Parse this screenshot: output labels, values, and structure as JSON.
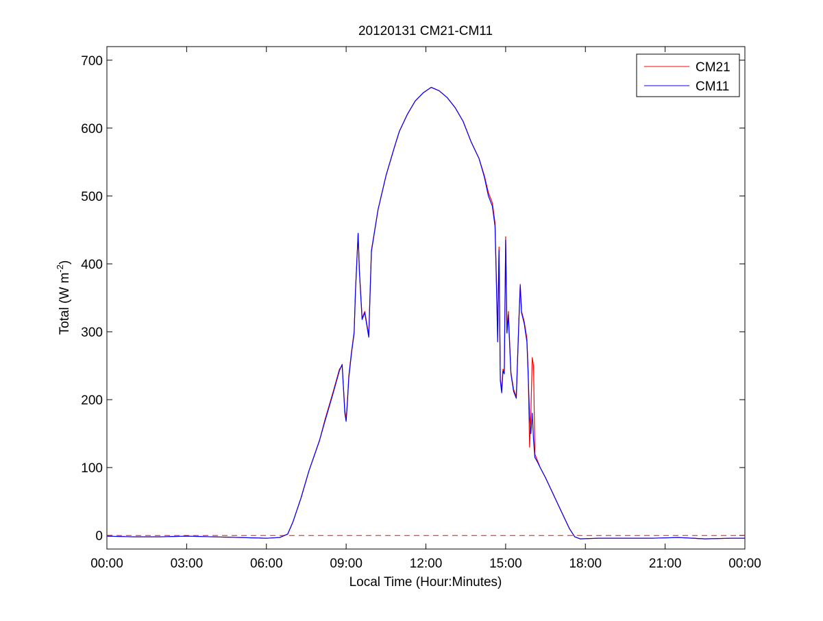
{
  "chart_data": {
    "type": "line",
    "title": "20120131 CM21-CM11",
    "xlabel": "Local Time (Hour:Minutes)",
    "ylabel": "Total (W m-2)",
    "ylabel_parts": {
      "main": "Total (W m",
      "sup": "-2",
      "close": ")"
    },
    "xlim": [
      0,
      24
    ],
    "ylim": [
      -20,
      720
    ],
    "x_ticks": [
      0,
      3,
      6,
      9,
      12,
      15,
      18,
      21,
      24
    ],
    "x_tick_labels": [
      "00:00",
      "03:00",
      "06:00",
      "09:00",
      "12:00",
      "15:00",
      "18:00",
      "21:00",
      "00:00"
    ],
    "y_ticks": [
      0,
      100,
      200,
      300,
      400,
      500,
      600,
      700
    ],
    "y_tick_labels": [
      "0",
      "100",
      "200",
      "300",
      "400",
      "500",
      "600",
      "700"
    ],
    "grid": false,
    "legend_position": "top-right",
    "reference_line": {
      "y": 0,
      "style": "dashed",
      "color": "#ff0000"
    },
    "series": [
      {
        "name": "CM21",
        "color": "#ff0000",
        "points": [
          [
            0,
            -1
          ],
          [
            1,
            -2
          ],
          [
            2,
            -2
          ],
          [
            3,
            -1
          ],
          [
            4,
            -2
          ],
          [
            5,
            -3
          ],
          [
            6,
            -4
          ],
          [
            6.5,
            -3
          ],
          [
            6.8,
            2
          ],
          [
            7.0,
            20
          ],
          [
            7.3,
            55
          ],
          [
            7.6,
            95
          ],
          [
            8.0,
            140
          ],
          [
            8.2,
            170
          ],
          [
            8.5,
            210
          ],
          [
            8.75,
            245
          ],
          [
            8.85,
            250
          ],
          [
            8.95,
            185
          ],
          [
            9.0,
            170
          ],
          [
            9.05,
            200
          ],
          [
            9.1,
            235
          ],
          [
            9.2,
            270
          ],
          [
            9.3,
            300
          ],
          [
            9.35,
            360
          ],
          [
            9.45,
            445
          ],
          [
            9.5,
            390
          ],
          [
            9.6,
            320
          ],
          [
            9.7,
            330
          ],
          [
            9.85,
            295
          ],
          [
            9.95,
            420
          ],
          [
            10.2,
            480
          ],
          [
            10.5,
            530
          ],
          [
            10.8,
            570
          ],
          [
            11.0,
            595
          ],
          [
            11.3,
            620
          ],
          [
            11.6,
            640
          ],
          [
            11.9,
            652
          ],
          [
            12.2,
            660
          ],
          [
            12.5,
            655
          ],
          [
            12.8,
            645
          ],
          [
            13.1,
            630
          ],
          [
            13.4,
            610
          ],
          [
            13.7,
            580
          ],
          [
            14.0,
            555
          ],
          [
            14.2,
            530
          ],
          [
            14.35,
            505
          ],
          [
            14.5,
            490
          ],
          [
            14.6,
            460
          ],
          [
            14.65,
            380
          ],
          [
            14.7,
            300
          ],
          [
            14.75,
            425
          ],
          [
            14.8,
            230
          ],
          [
            14.85,
            215
          ],
          [
            14.9,
            245
          ],
          [
            14.95,
            240
          ],
          [
            15.0,
            440
          ],
          [
            15.05,
            300
          ],
          [
            15.1,
            330
          ],
          [
            15.2,
            240
          ],
          [
            15.3,
            215
          ],
          [
            15.4,
            205
          ],
          [
            15.5,
            320
          ],
          [
            15.55,
            370
          ],
          [
            15.6,
            330
          ],
          [
            15.7,
            315
          ],
          [
            15.8,
            290
          ],
          [
            15.85,
            240
          ],
          [
            15.9,
            130
          ],
          [
            15.95,
            180
          ],
          [
            16.0,
            262
          ],
          [
            16.05,
            250
          ],
          [
            16.1,
            120
          ],
          [
            16.2,
            110
          ],
          [
            16.3,
            100
          ],
          [
            16.5,
            85
          ],
          [
            16.8,
            60
          ],
          [
            17.1,
            35
          ],
          [
            17.4,
            10
          ],
          [
            17.6,
            -2
          ],
          [
            17.8,
            -5
          ],
          [
            18.5,
            -4
          ],
          [
            19.5,
            -4
          ],
          [
            20.5,
            -4
          ],
          [
            21.5,
            -3
          ],
          [
            22.5,
            -5
          ],
          [
            23.5,
            -4
          ],
          [
            24,
            -4
          ]
        ]
      },
      {
        "name": "CM11",
        "color": "#0000ff",
        "points": [
          [
            0,
            -1
          ],
          [
            1,
            -2
          ],
          [
            2,
            -2
          ],
          [
            3,
            -1
          ],
          [
            4,
            -2
          ],
          [
            5,
            -3
          ],
          [
            6,
            -4
          ],
          [
            6.5,
            -3
          ],
          [
            6.8,
            2
          ],
          [
            7.0,
            20
          ],
          [
            7.3,
            55
          ],
          [
            7.6,
            95
          ],
          [
            8.0,
            140
          ],
          [
            8.2,
            168
          ],
          [
            8.5,
            208
          ],
          [
            8.75,
            243
          ],
          [
            8.85,
            252
          ],
          [
            8.95,
            180
          ],
          [
            9.0,
            168
          ],
          [
            9.05,
            198
          ],
          [
            9.1,
            232
          ],
          [
            9.2,
            268
          ],
          [
            9.3,
            298
          ],
          [
            9.35,
            358
          ],
          [
            9.45,
            445
          ],
          [
            9.5,
            388
          ],
          [
            9.6,
            318
          ],
          [
            9.7,
            328
          ],
          [
            9.85,
            292
          ],
          [
            9.95,
            418
          ],
          [
            10.2,
            480
          ],
          [
            10.5,
            530
          ],
          [
            10.8,
            570
          ],
          [
            11.0,
            595
          ],
          [
            11.3,
            620
          ],
          [
            11.6,
            640
          ],
          [
            11.9,
            652
          ],
          [
            12.2,
            660
          ],
          [
            12.5,
            655
          ],
          [
            12.8,
            645
          ],
          [
            13.1,
            630
          ],
          [
            13.4,
            610
          ],
          [
            13.7,
            580
          ],
          [
            14.0,
            555
          ],
          [
            14.2,
            528
          ],
          [
            14.35,
            500
          ],
          [
            14.5,
            485
          ],
          [
            14.6,
            455
          ],
          [
            14.65,
            375
          ],
          [
            14.7,
            285
          ],
          [
            14.75,
            420
          ],
          [
            14.8,
            228
          ],
          [
            14.85,
            210
          ],
          [
            14.9,
            242
          ],
          [
            14.95,
            238
          ],
          [
            15.0,
            435
          ],
          [
            15.05,
            298
          ],
          [
            15.1,
            325
          ],
          [
            15.2,
            238
          ],
          [
            15.3,
            212
          ],
          [
            15.4,
            202
          ],
          [
            15.5,
            318
          ],
          [
            15.55,
            368
          ],
          [
            15.6,
            328
          ],
          [
            15.7,
            312
          ],
          [
            15.8,
            285
          ],
          [
            15.85,
            235
          ],
          [
            15.9,
            175
          ],
          [
            15.95,
            150
          ],
          [
            16.0,
            180
          ],
          [
            16.05,
            140
          ],
          [
            16.1,
            115
          ],
          [
            16.2,
            108
          ],
          [
            16.3,
            100
          ],
          [
            16.5,
            85
          ],
          [
            16.8,
            60
          ],
          [
            17.1,
            35
          ],
          [
            17.4,
            10
          ],
          [
            17.6,
            -2
          ],
          [
            17.8,
            -5
          ],
          [
            18.5,
            -4
          ],
          [
            19.5,
            -4
          ],
          [
            20.5,
            -4
          ],
          [
            21.5,
            -3
          ],
          [
            22.5,
            -5
          ],
          [
            23.5,
            -4
          ],
          [
            24,
            -4
          ]
        ]
      }
    ]
  }
}
